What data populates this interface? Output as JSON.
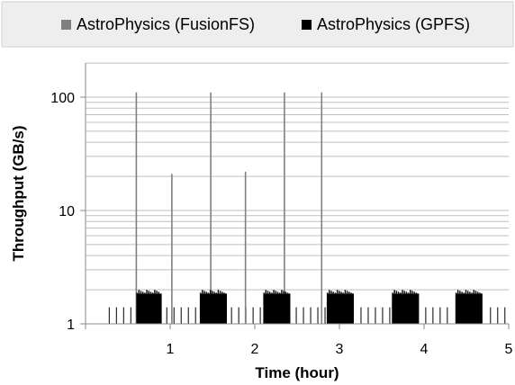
{
  "chart_data": {
    "type": "bar",
    "xlabel": "Time (hour)",
    "ylabel": "Throughput (GB/s)",
    "xlim": [
      0,
      5
    ],
    "ylim": [
      1,
      200
    ],
    "yscale": "log",
    "grid": "horizontal",
    "legend_position": "top",
    "x_ticks": [
      "1",
      "2",
      "3",
      "4",
      "5"
    ],
    "y_ticks": [
      "1",
      "10",
      "100"
    ],
    "series": [
      {
        "name": "AstroPhysics (FusionFS)",
        "color": "#808080",
        "spikes": [
          {
            "x": 0.6,
            "y": 110
          },
          {
            "x": 1.02,
            "y": 21
          },
          {
            "x": 1.48,
            "y": 110
          },
          {
            "x": 1.89,
            "y": 22
          },
          {
            "x": 2.35,
            "y": 110
          },
          {
            "x": 2.79,
            "y": 110
          }
        ]
      },
      {
        "name": "AstroPhysics (GPFS)",
        "color": "#000000",
        "bursts": [
          {
            "start": 0.6,
            "end": 0.9,
            "y": 1.85
          },
          {
            "start": 1.35,
            "end": 1.67,
            "y": 1.85
          },
          {
            "start": 2.1,
            "end": 2.42,
            "y": 1.85
          },
          {
            "start": 2.85,
            "end": 3.17,
            "y": 1.85
          },
          {
            "start": 3.62,
            "end": 3.94,
            "y": 1.85
          },
          {
            "start": 4.37,
            "end": 4.69,
            "y": 1.85
          }
        ],
        "background_pulses": {
          "y": 1.4,
          "x_start": 0.28,
          "x_end": 5.0,
          "spacing": 0.085
        }
      }
    ]
  }
}
